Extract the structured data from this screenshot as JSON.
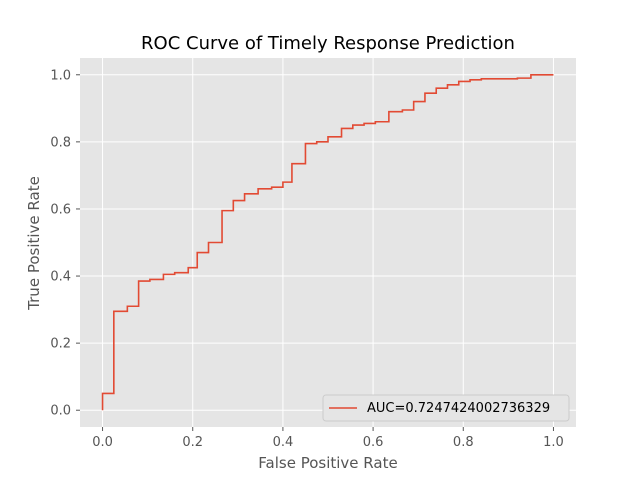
{
  "chart_data": {
    "type": "line",
    "title": "ROC Curve of Timely Response Prediction",
    "xlabel": "False Positive Rate",
    "ylabel": "True Positive Rate",
    "xlim": [
      -0.05,
      1.05
    ],
    "ylim": [
      -0.05,
      1.05
    ],
    "x_ticks": [
      0.0,
      0.2,
      0.4,
      0.6,
      0.8,
      1.0
    ],
    "y_ticks": [
      0.0,
      0.2,
      0.4,
      0.6,
      0.8,
      1.0
    ],
    "x_tick_labels": [
      "0.0",
      "0.2",
      "0.4",
      "0.6",
      "0.8",
      "1.0"
    ],
    "y_tick_labels": [
      "0.0",
      "0.2",
      "0.4",
      "0.6",
      "0.8",
      "1.0"
    ],
    "grid": true,
    "style": "ggplot",
    "legend_position": "lower-right",
    "series": [
      {
        "name": "AUC=0.7247424002736329",
        "color": "#e24a33",
        "x": [
          0.0,
          0.0,
          0.025,
          0.025,
          0.055,
          0.055,
          0.08,
          0.08,
          0.105,
          0.105,
          0.135,
          0.135,
          0.16,
          0.16,
          0.19,
          0.19,
          0.21,
          0.21,
          0.235,
          0.235,
          0.265,
          0.265,
          0.29,
          0.29,
          0.315,
          0.315,
          0.345,
          0.345,
          0.375,
          0.375,
          0.4,
          0.4,
          0.42,
          0.42,
          0.45,
          0.45,
          0.475,
          0.475,
          0.5,
          0.5,
          0.53,
          0.53,
          0.555,
          0.555,
          0.58,
          0.58,
          0.605,
          0.605,
          0.635,
          0.635,
          0.665,
          0.665,
          0.69,
          0.69,
          0.715,
          0.715,
          0.74,
          0.74,
          0.765,
          0.765,
          0.79,
          0.79,
          0.815,
          0.815,
          0.84,
          0.84,
          0.87,
          0.87,
          0.92,
          0.92,
          0.95,
          0.95,
          0.975,
          0.975,
          1.0
        ],
        "y": [
          0.0,
          0.05,
          0.05,
          0.295,
          0.295,
          0.31,
          0.31,
          0.385,
          0.385,
          0.39,
          0.39,
          0.405,
          0.405,
          0.41,
          0.41,
          0.425,
          0.425,
          0.47,
          0.47,
          0.5,
          0.5,
          0.595,
          0.595,
          0.625,
          0.625,
          0.645,
          0.645,
          0.66,
          0.66,
          0.665,
          0.665,
          0.68,
          0.68,
          0.735,
          0.735,
          0.795,
          0.795,
          0.8,
          0.8,
          0.815,
          0.815,
          0.84,
          0.84,
          0.85,
          0.85,
          0.855,
          0.855,
          0.86,
          0.86,
          0.89,
          0.89,
          0.895,
          0.895,
          0.92,
          0.92,
          0.945,
          0.945,
          0.96,
          0.96,
          0.97,
          0.97,
          0.98,
          0.98,
          0.985,
          0.985,
          0.988,
          0.988,
          0.988,
          0.988,
          0.99,
          0.99,
          1.0,
          1.0,
          1.0,
          1.0
        ]
      }
    ]
  }
}
